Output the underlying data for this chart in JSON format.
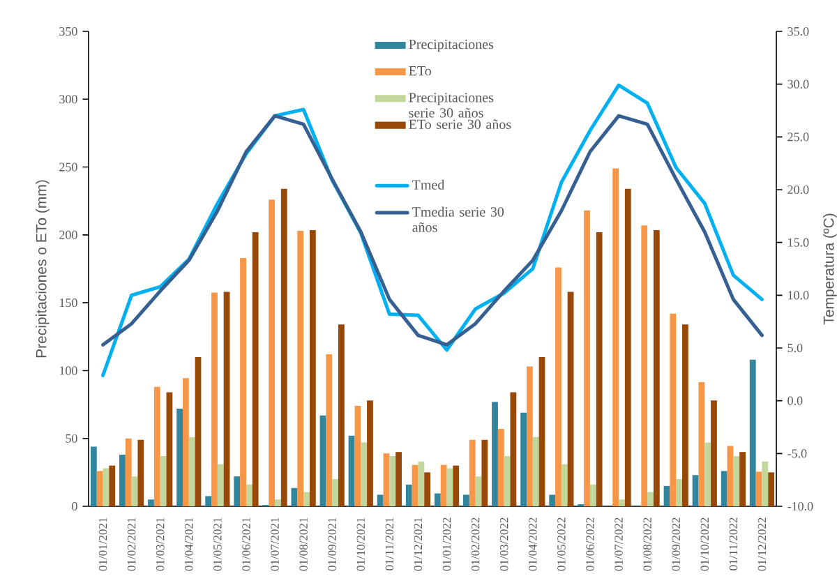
{
  "chart_data": {
    "type": "bar",
    "ylabel": "Precipitaciones o ETo (mm)",
    "y2label": "Temperatura (ºC)",
    "categories": [
      "01/01/2021",
      "01/02/2021",
      "01/03/2021",
      "01/04/2021",
      "01/05/2021",
      "01/06/2021",
      "01/07/2021",
      "01/08/2021",
      "01/09/2021",
      "01/10/2021",
      "01/11/2021",
      "01/12/2021",
      "01/01/2022",
      "01/02/2022",
      "01/03/2022",
      "01/04/2022",
      "01/05/2022",
      "01/06/2022",
      "01/07/2022",
      "01/08/2022",
      "01/09/2022",
      "01/10/2022",
      "01/11/2022",
      "01/12/2022"
    ],
    "series": [
      {
        "name": "Precipitaciones",
        "color": "#31859c",
        "values": [
          44,
          38,
          5,
          72,
          7.5,
          22,
          1,
          13.5,
          67,
          52,
          8.5,
          16,
          9.5,
          8.5,
          77,
          69,
          8.5,
          1.5,
          0,
          0,
          15,
          23,
          26,
          108
        ]
      },
      {
        "name": "ETo",
        "color": "#f79646",
        "values": [
          26,
          50,
          88,
          94.5,
          157.5,
          183,
          226,
          203,
          112,
          74,
          39,
          30.5,
          30.5,
          49,
          57,
          103,
          176,
          218,
          249,
          207,
          142,
          91.5,
          44.5,
          25.5
        ]
      },
      {
        "name": "Precipitaciones serie 30 años",
        "color": "#c3d69b",
        "values": [
          28,
          22,
          37,
          51,
          31,
          16,
          5,
          10.5,
          20,
          47,
          37,
          33,
          28,
          22,
          37,
          51,
          31,
          16,
          5,
          10.5,
          20,
          47,
          37,
          33
        ]
      },
      {
        "name": "ETo serie 30 años",
        "color": "#984807",
        "values": [
          30,
          49,
          84,
          110,
          158,
          202,
          234,
          203.5,
          134,
          78,
          40,
          25,
          30,
          49,
          84,
          110,
          158,
          202,
          234,
          203.5,
          134,
          78,
          40,
          25
        ]
      },
      {
        "name": "Tmed",
        "type": "line",
        "axis": "y2",
        "color": "#00b0f0",
        "values": [
          2.4,
          10.0,
          10.8,
          13.4,
          18.7,
          23.4,
          27.0,
          27.6,
          20.9,
          15.9,
          8.2,
          8.1,
          4.8,
          8.7,
          10.2,
          12.5,
          20.7,
          25.6,
          29.9,
          28.2,
          22.1,
          18.7,
          11.9,
          9.6
        ]
      },
      {
        "name": "Tmedia serie 30 años",
        "type": "line",
        "axis": "y2",
        "color": "#376092",
        "values": [
          5.3,
          7.3,
          10.4,
          13.3,
          18.0,
          23.6,
          27.0,
          26.2,
          21.0,
          16.0,
          9.6,
          6.2,
          5.3,
          7.3,
          10.4,
          13.3,
          18.0,
          23.6,
          27.0,
          26.2,
          21.0,
          16.0,
          9.6,
          6.2
        ]
      }
    ],
    "ylim": [
      0,
      350
    ],
    "yticks": [
      0,
      50,
      100,
      150,
      200,
      250,
      300,
      350
    ],
    "y2lim": [
      -10,
      35
    ],
    "y2ticks": [
      {
        "value": -10,
        "label": "-10.0"
      },
      {
        "value": -5,
        "label": "-5.0"
      },
      {
        "value": 0,
        "label": "0.0"
      },
      {
        "value": 5,
        "label": "5.0"
      },
      {
        "value": 10,
        "label": "10.0"
      },
      {
        "value": 15,
        "label": "15.0"
      },
      {
        "value": 20,
        "label": "20.0"
      },
      {
        "value": 25,
        "label": "25.0"
      },
      {
        "value": 30,
        "label": "30.0"
      },
      {
        "value": 35,
        "label": "35.0"
      }
    ],
    "legend": "top"
  }
}
